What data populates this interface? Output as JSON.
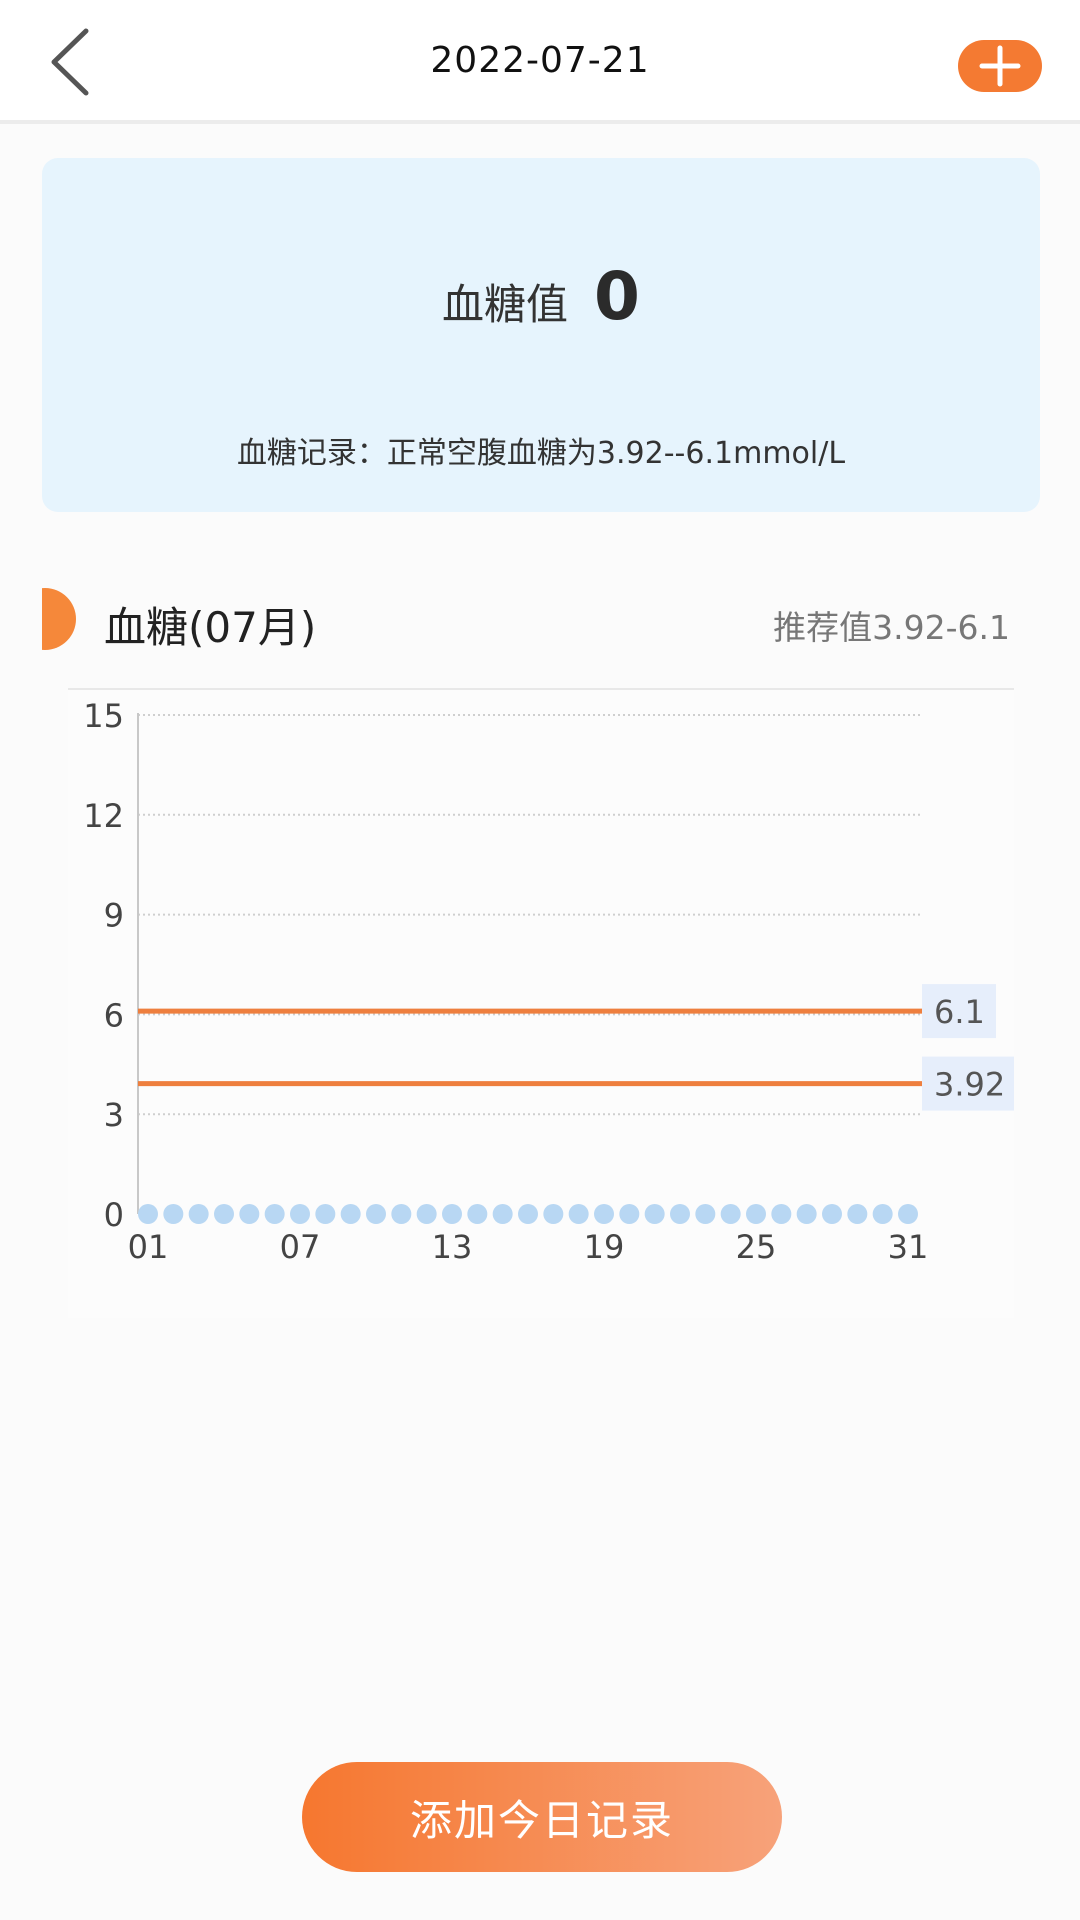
{
  "header": {
    "title": "2022-07-21",
    "back_icon": "chevron-left-icon",
    "add_icon": "plus-icon",
    "accent": "#f47a32"
  },
  "card": {
    "value_label": "血糖值",
    "value": "0",
    "note": "血糖记录：正常空腹血糖为3.92--6.1mmol/L"
  },
  "section": {
    "title": "血糖(07月)",
    "recommended": "推荐值3.92-6.1"
  },
  "chart_data": {
    "type": "line",
    "y_ticks": [
      "15",
      "12",
      "9",
      "6",
      "3",
      "0"
    ],
    "ylim": [
      0,
      15
    ],
    "x_ticks": [
      "01",
      "07",
      "13",
      "19",
      "25",
      "31"
    ],
    "xlim": [
      1,
      31
    ],
    "grid": true,
    "series": [
      {
        "x": [
          1,
          2,
          3,
          4,
          5,
          6,
          7,
          8,
          9,
          10,
          11,
          12,
          13,
          14,
          15,
          16,
          17,
          18,
          19,
          20,
          21,
          22,
          23,
          24,
          25,
          26,
          27,
          28,
          29,
          30,
          31
        ],
        "values": [
          0,
          0,
          0,
          0,
          0,
          0,
          0,
          0,
          0,
          0,
          0,
          0,
          0,
          0,
          0,
          0,
          0,
          0,
          0,
          0,
          0,
          0,
          0,
          0,
          0,
          0,
          0,
          0,
          0,
          0,
          0
        ],
        "color": "#b8d7f3"
      }
    ],
    "reference_lines": [
      {
        "value": 6.1,
        "label": "6.1",
        "color": "#ee7f3e"
      },
      {
        "value": 3.92,
        "label": "3.92",
        "color": "#ee7f3e"
      }
    ]
  },
  "bottom": {
    "add_record_label": "添加今日记录"
  }
}
